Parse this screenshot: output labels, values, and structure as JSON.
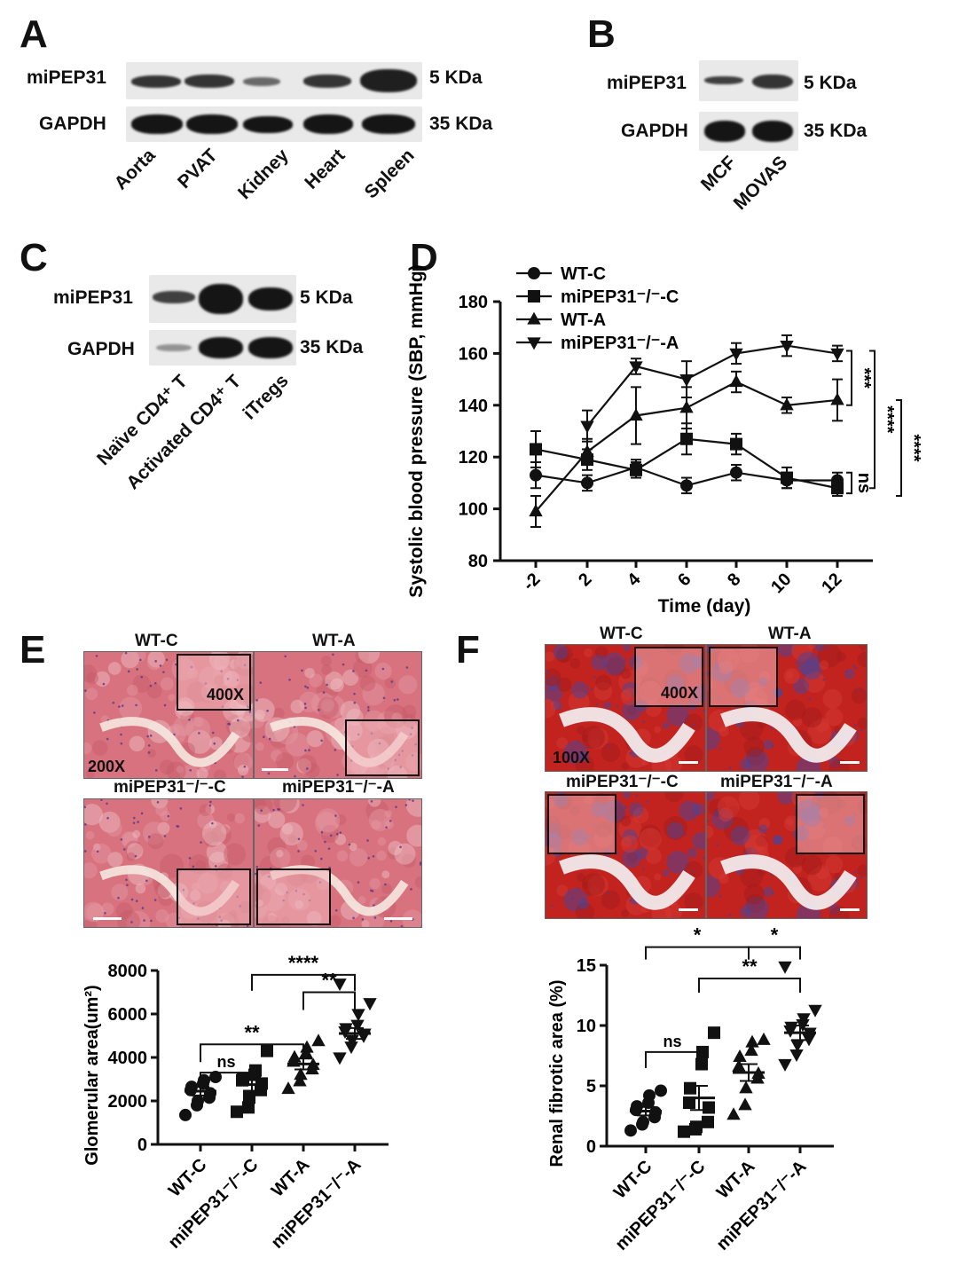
{
  "panels": {
    "A": "A",
    "B": "B",
    "C": "C",
    "D": "D",
    "E": "E",
    "F": "F"
  },
  "panel_a": {
    "rows": [
      {
        "label": "miPEP31",
        "kda": "5 KDa"
      },
      {
        "label": "GAPDH",
        "kda": "35 KDa"
      }
    ],
    "lanes": [
      "Aorta",
      "PVAT",
      "Kidney",
      "Heart",
      "Spleen"
    ]
  },
  "panel_b": {
    "rows": [
      {
        "label": "miPEP31",
        "kda": "5 KDa"
      },
      {
        "label": "GAPDH",
        "kda": "35 KDa"
      }
    ],
    "lanes": [
      "MCF",
      "MOVAS"
    ]
  },
  "panel_c": {
    "rows": [
      {
        "label": "miPEP31",
        "kda": "5 KDa"
      },
      {
        "label": "GAPDH",
        "kda": "35 KDa"
      }
    ],
    "lanes": [
      "Naïve CD4⁺ T",
      "Activated CD4⁺ T",
      "iTregs"
    ]
  },
  "panel_e_images": {
    "titles": [
      "WT-C",
      "WT-A",
      "miPEP31⁻/⁻-C",
      "miPEP31⁻/⁻-A"
    ],
    "mag_low": "200X",
    "mag_high": "400X",
    "stain_color": "#d8727e"
  },
  "panel_f_images": {
    "titles": [
      "WT-C",
      "WT-A",
      "miPEP31⁻/⁻-C",
      "miPEP31⁻/⁻-A"
    ],
    "mag_low": "100X",
    "mag_high": "400X",
    "stain_color": "#c2231f",
    "fibrosis_color": "#3b49a8"
  },
  "chart_data": [
    {
      "id": "D",
      "type": "line",
      "ylabel": "Systolic blood pressure (SBP, mmHg)",
      "xlabel": "Time (day)",
      "x": [
        -2,
        2,
        4,
        6,
        8,
        10,
        12
      ],
      "xticks": [
        "-2",
        "2",
        "4",
        "6",
        "8",
        "10",
        "12"
      ],
      "yticks": [
        "80",
        "100",
        "120",
        "140",
        "160",
        "180"
      ],
      "ylim": [
        80,
        180
      ],
      "legend": "top-left",
      "series": [
        {
          "name": "WT-C",
          "marker": "circle",
          "values": [
            113,
            110,
            116,
            109,
            114,
            111,
            111
          ],
          "err": [
            5,
            3,
            3,
            3,
            3,
            3,
            3
          ]
        },
        {
          "name": "miPEP31⁻/⁻-C",
          "marker": "square",
          "values": [
            123,
            119,
            115,
            127,
            125,
            112,
            108
          ],
          "err": [
            7,
            4,
            3,
            6,
            4,
            4,
            3
          ]
        },
        {
          "name": "WT-A",
          "marker": "triangle-up",
          "values": [
            99,
            122,
            136,
            139,
            149,
            140,
            142
          ],
          "err": [
            6,
            5,
            11,
            8,
            4,
            3,
            8
          ]
        },
        {
          "name": "miPEP31⁻/⁻-A",
          "marker": "triangle-down",
          "values": [
            null,
            132,
            155,
            150,
            160,
            163,
            160
          ],
          "err": [
            null,
            6,
            3,
            7,
            4,
            4,
            3
          ]
        }
      ],
      "annotations": [
        "***",
        "****",
        "****",
        "ns"
      ]
    },
    {
      "id": "E",
      "type": "scatter",
      "ylabel": "Glomerular area(um²)",
      "categories": [
        "WT-C",
        "miPEP31⁻/⁻-C",
        "WT-A",
        "miPEP31⁻/⁻-A"
      ],
      "yticks": [
        "0",
        "2000",
        "4000",
        "6000",
        "8000"
      ],
      "ylim": [
        0,
        8000
      ],
      "groups": [
        {
          "marker": "circle",
          "mean": 2450,
          "sem": 200,
          "values": [
            1350,
            1800,
            2000,
            2150,
            2350,
            2500,
            2650,
            2800,
            2950,
            3100
          ]
        },
        {
          "marker": "square",
          "mean": 2750,
          "sem": 280,
          "values": [
            1500,
            1700,
            2150,
            2500,
            2800,
            2950,
            3050,
            3200,
            3400,
            4300
          ]
        },
        {
          "marker": "triangle-up",
          "mean": 3700,
          "sem": 250,
          "values": [
            2550,
            2900,
            3200,
            3450,
            3650,
            3800,
            4000,
            4200,
            4450,
            4750
          ]
        },
        {
          "marker": "triangle-down",
          "mean": 5100,
          "sem": 250,
          "values": [
            4000,
            4500,
            4800,
            5000,
            5100,
            5200,
            5350,
            5500,
            6000,
            6500,
            7400
          ]
        }
      ],
      "annotations": [
        "ns",
        "**",
        "**",
        "****"
      ]
    },
    {
      "id": "F",
      "type": "scatter",
      "ylabel": "Renal fibrotic area (%)",
      "categories": [
        "WT-C",
        "miPEP31⁻/⁻-C",
        "WT-A",
        "miPEP31⁻/⁻-A"
      ],
      "yticks": [
        "0",
        "5",
        "10",
        "15"
      ],
      "ylim": [
        0,
        15
      ],
      "groups": [
        {
          "marker": "circle",
          "mean": 2.9,
          "sem": 0.35,
          "values": [
            1.3,
            1.8,
            2.0,
            2.4,
            2.8,
            3.0,
            3.3,
            3.6,
            4.2,
            4.6
          ]
        },
        {
          "marker": "square",
          "mean": 4.0,
          "sem": 1.0,
          "values": [
            1.2,
            1.4,
            1.6,
            2.0,
            3.2,
            3.6,
            4.8,
            6.8,
            7.8,
            9.4
          ]
        },
        {
          "marker": "triangle-up",
          "mean": 6.1,
          "sem": 0.7,
          "values": [
            2.6,
            3.4,
            4.8,
            5.6,
            6.0,
            6.6,
            7.4,
            7.9,
            8.6,
            8.8
          ]
        },
        {
          "marker": "triangle-down",
          "mean": 9.4,
          "sem": 0.6,
          "values": [
            6.8,
            7.6,
            8.4,
            8.9,
            9.4,
            9.6,
            9.9,
            10.1,
            10.6,
            11.3,
            14.9
          ]
        }
      ],
      "annotations": [
        "ns",
        "*",
        "*",
        "**"
      ]
    }
  ]
}
